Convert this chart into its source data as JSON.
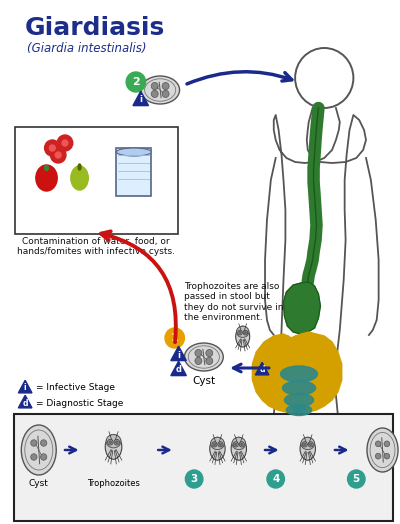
{
  "title": "Giardiasis",
  "subtitle": "(Giardia intestinalis)",
  "title_color": "#1c2d8a",
  "subtitle_color": "#1c2d8a",
  "bg_color": "#ffffff",
  "contamination_text": "Contamination of water, food, or\nhands/fomites with infective cysts.",
  "trophozoites_text": "Trophozoites are also\npassed in stool but\nthey do not survive in\nthe environment.",
  "legend_infective": "= Infective Stage",
  "legend_diagnostic": "= Diagnostic Stage",
  "cyst_label": "Cyst",
  "trophozoites_label": "Trophozoites",
  "arrow_blue": "#1a2a8c",
  "arrow_red": "#cc1111",
  "num2_color": "#3aaa55",
  "num1_color": "#e8a000",
  "step_circle_color": "#2e9e8e",
  "triangle_color": "#1a2a8c",
  "body_outline_color": "#555555",
  "esoph_color": "#2e7a2e",
  "stomach_color": "#2e7a2e",
  "large_intestine_color": "#d4a000",
  "small_intestine_color": "#2e8888",
  "box_ec": "#333333",
  "bottom_panel_bg": "#f0f0f0",
  "bottom_panel_ec": "#222222"
}
